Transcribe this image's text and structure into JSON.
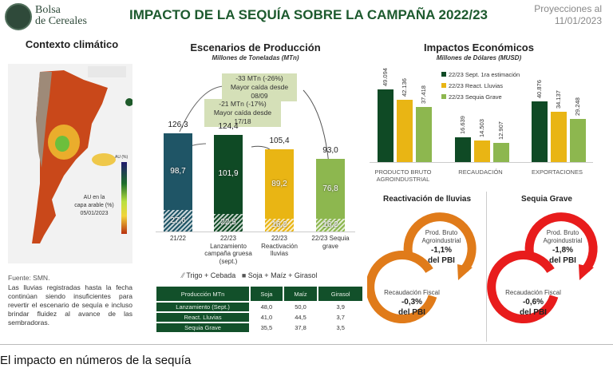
{
  "header": {
    "brand_line1": "Bolsa",
    "brand_line2": "de Cereales",
    "title": "IMPACTO DE LA SEQUÍA SOBRE LA CAMPAÑA 2022/23",
    "projection_label": "Proyecciones al",
    "projection_date": "11/01/2023"
  },
  "climate": {
    "title": "Contexto climático",
    "map_label_1": "AU en la",
    "map_label_2": "capa arable (%)",
    "map_date": "05/01/2023",
    "legend_title": "AU (%)",
    "source": "Fuente: SMN.",
    "description": "Las lluvias registradas hasta la fecha continúan siendo insuficientes para revertir el escenario de sequía e incluso brindar fluidez al avance de las sembradoras."
  },
  "production": {
    "title": "Escenarios de Producción",
    "subtitle": "Millones de Toneladas (MTn)",
    "callout1_line1": "-33 MTn (-26%)",
    "callout1_line2": "Mayor caída desde 08/09",
    "callout2_line1": "-21 MTn (-17%)",
    "callout2_line2": "Mayor caída desde 17/18",
    "legend_wheat": "Trigo + Cebada",
    "legend_soy": "Soja + Maíz + Girasol",
    "table": {
      "headers": [
        "Producción MTn",
        "Soja",
        "Maíz",
        "Girasol"
      ],
      "rows": [
        [
          "Lanzamiento (Sept.)",
          "48,0",
          "50,0",
          "3,9"
        ],
        [
          "React. Lluvias",
          "41,0",
          "44,5",
          "3,7"
        ],
        [
          "Sequia Grave",
          "35,5",
          "37,8",
          "3,5"
        ]
      ]
    }
  },
  "economic": {
    "title": "Impactos Económicos",
    "subtitle": "Millones de Dólares (MUSD)"
  },
  "scenarios": {
    "left": {
      "title": "Reactivación de lluvias",
      "c1_label1": "Prod. Bruto",
      "c1_label2": "Agroindustrial",
      "c1_value": "-1,1%",
      "c1_unit": "del PBI",
      "c2_label": "Recaudación Fiscal",
      "c2_value": "-0,3%",
      "c2_unit": "del PBI",
      "color": "#e07b1a"
    },
    "right": {
      "title": "Sequia Grave",
      "c1_label1": "Prod. Bruto",
      "c1_label2": "Agroindustrial",
      "c1_value": "-1,8%",
      "c1_unit": "del PBI",
      "c2_label": "Recaudación Fiscal",
      "c2_value": "-0,6%",
      "c2_unit": "del PBI",
      "color": "#e81c1c"
    }
  },
  "caption": "El impacto en números de la sequía",
  "chart_data": [
    {
      "type": "bar",
      "title": "Escenarios de Producción",
      "subtitle": "Millones de Toneladas (MTn)",
      "categories": [
        "21/22",
        "22/23 Lanzamiento campaña gruesa (sept.)",
        "22/23 Reactivación lluvias",
        "22/23 Sequia grave"
      ],
      "cat_lines": [
        [
          "21/22"
        ],
        [
          "22/23",
          "Lanzamiento",
          "campaña gruesa",
          "(sept.)"
        ],
        [
          "22/23",
          "Reactivación",
          "lluvias"
        ],
        [
          "22/23 Sequia",
          "grave"
        ]
      ],
      "totals": [
        "126,3",
        "124,4",
        "105,4",
        "93,0"
      ],
      "series": [
        {
          "name": "Trigo + Cebada",
          "values": [
            27.6,
            22.5,
            16.2,
            16.2
          ],
          "labels": [
            "27,6",
            "22,5",
            "16,2",
            "16,2"
          ]
        },
        {
          "name": "Soja + Maíz + Girasol",
          "values": [
            98.7,
            101.9,
            89.2,
            76.8
          ],
          "labels": [
            "98,7",
            "101,9",
            "89,2",
            "76,8"
          ]
        }
      ],
      "colors": [
        "#1f5566",
        "#0f4a25",
        "#e9b514",
        "#8db74f"
      ],
      "stacked": true
    },
    {
      "type": "bar",
      "title": "Impactos Económicos",
      "subtitle": "Millones de Dólares (MUSD)",
      "categories": [
        [
          "PRODUCTO BRUTO",
          "AGROINDUSTRIAL"
        ],
        [
          "RECAUDACIÓN"
        ],
        [
          "EXPORTACIONES"
        ]
      ],
      "series": [
        {
          "name": "22/23 Sept. 1ra estimación",
          "values": [
            49094,
            16639,
            40876
          ],
          "labels": [
            "49.094",
            "16.639",
            "40.876"
          ],
          "color": "#0f4a25"
        },
        {
          "name": "22/23 React. Lluvias",
          "values": [
            42136,
            14503,
            34137
          ],
          "labels": [
            "42.136",
            "14.503",
            "34.137"
          ],
          "color": "#e9b514"
        },
        {
          "name": "22/23 Sequia Grave",
          "values": [
            37418,
            12907,
            29248
          ],
          "labels": [
            "37.418",
            "12.907",
            "29.248"
          ],
          "color": "#8db74f"
        }
      ],
      "legend": "top-center"
    }
  ]
}
